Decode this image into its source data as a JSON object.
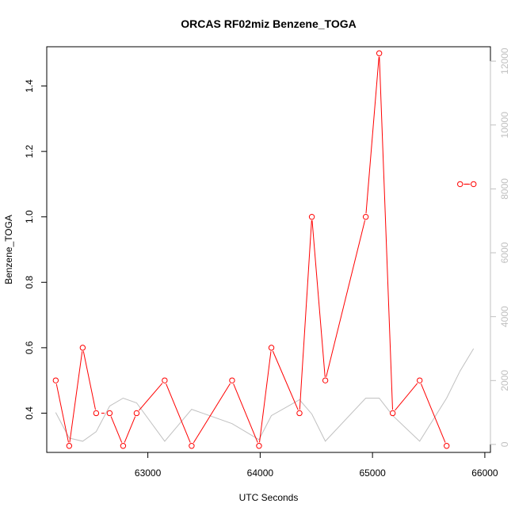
{
  "chart_data": {
    "type": "line",
    "title": "ORCAS RF02miz Benzene_TOGA",
    "xlabel": "UTC Seconds",
    "ylabel": "Benzene_TOGA",
    "xlim": [
      62100,
      66050
    ],
    "ylim": [
      0.28,
      1.52
    ],
    "y2lim": [
      -250,
      12450
    ],
    "xticks": [
      "63000",
      "64000",
      "65000",
      "66000"
    ],
    "yticks": [
      "0.4",
      "0.6",
      "0.8",
      "1.0",
      "1.2",
      "1.4"
    ],
    "y2ticks": [
      "0",
      "2000",
      "4000",
      "6000",
      "8000",
      "10000",
      "12000"
    ],
    "grid": false,
    "series": [
      {
        "color": "#ff0000",
        "axis": "left",
        "markers": "open-circle",
        "x": [
          62180,
          62300,
          62420,
          62540,
          62660,
          62780,
          62900,
          63150,
          63390,
          63750,
          63990,
          64100,
          64350,
          64460,
          64580,
          64940,
          65060,
          65180,
          65420,
          65660,
          65780,
          65900
        ],
        "y": [
          0.5,
          0.3,
          0.6,
          0.4,
          0.4,
          0.3,
          0.4,
          0.5,
          0.3,
          0.5,
          0.3,
          0.6,
          0.4,
          1.0,
          0.5,
          1.0,
          1.5,
          0.4,
          0.5,
          0.3,
          1.1,
          1.1
        ],
        "segments": [
          [
            0,
            3
          ],
          [
            4,
            19
          ],
          [
            20,
            21
          ]
        ]
      },
      {
        "color": "#c0c0c0",
        "axis": "right",
        "markers": "none",
        "x": [
          62180,
          62300,
          62420,
          62540,
          62660,
          62780,
          62900,
          63150,
          63390,
          63750,
          63990,
          64100,
          64350,
          64460,
          64580,
          64940,
          65060,
          65180,
          65420,
          65660,
          65780,
          65900
        ],
        "y": [
          1000,
          200,
          100,
          400,
          1200,
          1450,
          1300,
          100,
          1100,
          650,
          150,
          900,
          1400,
          950,
          100,
          1450,
          1450,
          900,
          100,
          1450,
          2300,
          3000
        ]
      }
    ]
  }
}
